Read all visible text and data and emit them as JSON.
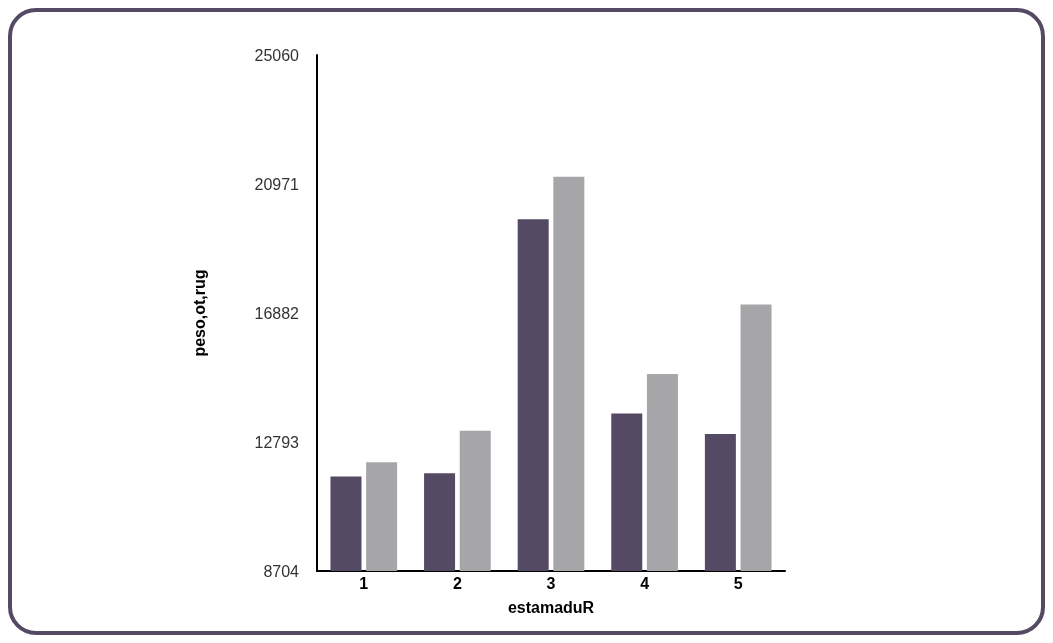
{
  "chart_data": {
    "type": "bar",
    "xlabel": "estamaduR",
    "ylabel": "peso,ot,rug",
    "categories": [
      "1",
      "2",
      "3",
      "4",
      "5"
    ],
    "series": [
      {
        "color": "#554a63",
        "values": [
          11700,
          11800,
          19850,
          13700,
          13050
        ]
      },
      {
        "color": "#a6a6a9",
        "values": [
          12150,
          13150,
          21200,
          14950,
          17150
        ]
      }
    ],
    "ylim": [
      8704,
      25060
    ],
    "yticks": [
      8704,
      12793,
      16882,
      20971,
      25060
    ],
    "grid": false
  }
}
